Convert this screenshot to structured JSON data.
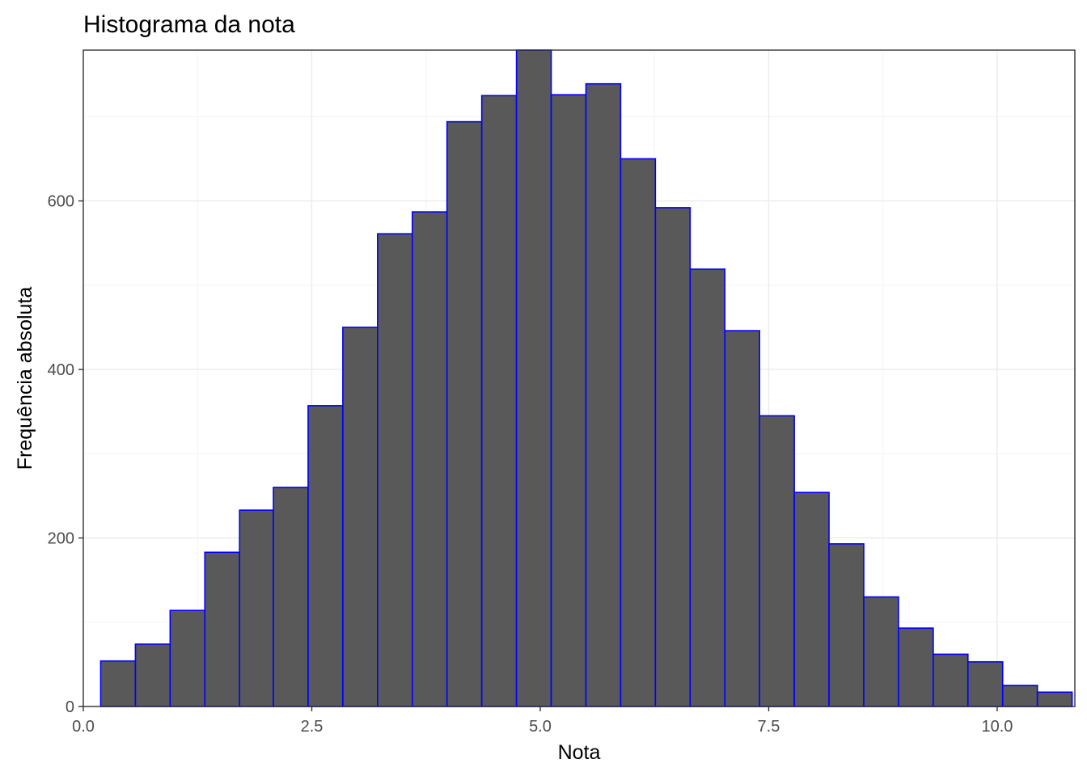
{
  "chart_data": {
    "type": "bar",
    "subtype": "histogram",
    "title": "Histograma da nota",
    "xlabel": "Nota",
    "ylabel": "Frequência absoluta",
    "xlim": [
      0,
      10.85
    ],
    "ylim": [
      0,
      779
    ],
    "x_ticks": [
      0.0,
      2.5,
      5.0,
      7.5,
      10.0
    ],
    "x_tick_labels": [
      "0.0",
      "2.5",
      "5.0",
      "7.5",
      "10.0"
    ],
    "y_ticks": [
      0,
      200,
      400,
      600
    ],
    "y_tick_labels": [
      "0",
      "200",
      "400",
      "600"
    ],
    "grid": true,
    "bar_fill": "#595959",
    "bar_outline": "#0000ff",
    "bins": [
      {
        "x0": 0.19,
        "x1": 0.57,
        "count": 54
      },
      {
        "x0": 0.57,
        "x1": 0.95,
        "count": 74
      },
      {
        "x0": 0.95,
        "x1": 1.33,
        "count": 114
      },
      {
        "x0": 1.33,
        "x1": 1.71,
        "count": 183
      },
      {
        "x0": 1.71,
        "x1": 2.08,
        "count": 233
      },
      {
        "x0": 2.08,
        "x1": 2.46,
        "count": 260
      },
      {
        "x0": 2.46,
        "x1": 2.84,
        "count": 357
      },
      {
        "x0": 2.84,
        "x1": 3.22,
        "count": 450
      },
      {
        "x0": 3.22,
        "x1": 3.6,
        "count": 561
      },
      {
        "x0": 3.6,
        "x1": 3.98,
        "count": 587
      },
      {
        "x0": 3.98,
        "x1": 4.36,
        "count": 694
      },
      {
        "x0": 4.36,
        "x1": 4.74,
        "count": 725
      },
      {
        "x0": 4.74,
        "x1": 5.12,
        "count": 779
      },
      {
        "x0": 5.12,
        "x1": 5.5,
        "count": 726
      },
      {
        "x0": 5.5,
        "x1": 5.88,
        "count": 739
      },
      {
        "x0": 5.88,
        "x1": 6.26,
        "count": 650
      },
      {
        "x0": 6.26,
        "x1": 6.64,
        "count": 592
      },
      {
        "x0": 6.64,
        "x1": 7.02,
        "count": 519
      },
      {
        "x0": 7.02,
        "x1": 7.4,
        "count": 446
      },
      {
        "x0": 7.4,
        "x1": 7.78,
        "count": 345
      },
      {
        "x0": 7.78,
        "x1": 8.16,
        "count": 254
      },
      {
        "x0": 8.16,
        "x1": 8.54,
        "count": 193
      },
      {
        "x0": 8.54,
        "x1": 8.92,
        "count": 130
      },
      {
        "x0": 8.92,
        "x1": 9.3,
        "count": 93
      },
      {
        "x0": 9.3,
        "x1": 9.68,
        "count": 62
      },
      {
        "x0": 9.68,
        "x1": 10.06,
        "count": 53
      },
      {
        "x0": 10.06,
        "x1": 10.44,
        "count": 25
      },
      {
        "x0": 10.44,
        "x1": 10.82,
        "count": 17
      }
    ]
  }
}
